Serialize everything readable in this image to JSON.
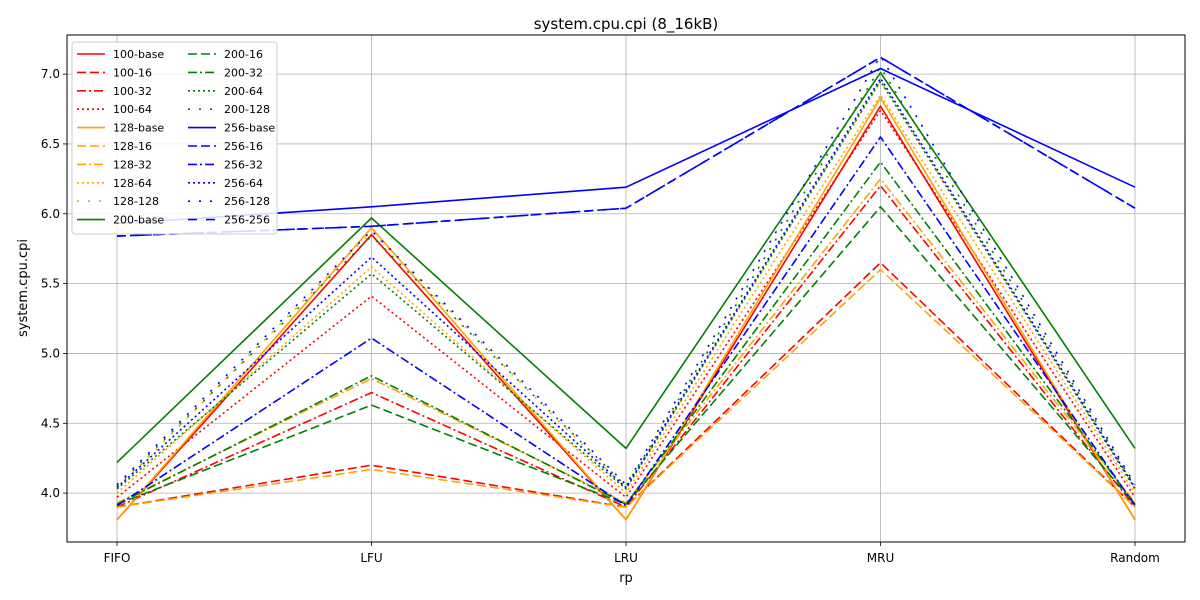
{
  "chart_data": {
    "type": "line",
    "title": "system.cpu.cpi (8_16kB)",
    "xlabel": "rp",
    "ylabel": "system.cpu.cpi",
    "categories": [
      "FIFO",
      "LFU",
      "LRU",
      "MRU",
      "Random"
    ],
    "ylim": [
      3.65,
      7.28
    ],
    "yticks": [
      4.0,
      4.5,
      5.0,
      5.5,
      6.0,
      6.5,
      7.0
    ],
    "ytick_labels": [
      "4.0",
      "4.5",
      "5.0",
      "5.5",
      "6.0",
      "6.5",
      "7.0"
    ],
    "grid": true,
    "legend_position": "upper-left",
    "legend_columns": 2,
    "colors": {
      "100": "#ff0000",
      "128": "#ffa500",
      "200": "#008000",
      "256": "#0000ff"
    },
    "series": [
      {
        "name": "100-base",
        "color": "#ff0000",
        "style": "solid",
        "values": [
          3.81,
          5.85,
          3.81,
          6.77,
          3.81
        ]
      },
      {
        "name": "100-16",
        "color": "#ff0000",
        "style": "dashed",
        "values": [
          3.9,
          4.2,
          3.9,
          5.65,
          3.9
        ]
      },
      {
        "name": "100-32",
        "color": "#ff0000",
        "style": "dashdot",
        "values": [
          3.9,
          4.72,
          3.9,
          6.2,
          3.9
        ]
      },
      {
        "name": "100-64",
        "color": "#ff0000",
        "style": "dotted",
        "values": [
          3.97,
          5.41,
          3.97,
          6.74,
          3.97
        ]
      },
      {
        "name": "128-base",
        "color": "#ffa500",
        "style": "solid",
        "values": [
          3.81,
          5.9,
          3.81,
          6.83,
          3.81
        ]
      },
      {
        "name": "128-16",
        "color": "#ffa500",
        "style": "dashed",
        "values": [
          3.9,
          4.17,
          3.9,
          5.6,
          3.9
        ]
      },
      {
        "name": "128-32",
        "color": "#ffa500",
        "style": "dashdot",
        "values": [
          3.93,
          4.82,
          3.93,
          6.25,
          3.93
        ]
      },
      {
        "name": "128-64",
        "color": "#ffa500",
        "style": "dotted",
        "values": [
          4.0,
          5.62,
          4.0,
          6.85,
          4.0
        ]
      },
      {
        "name": "128-128",
        "color": "#ffa500",
        "style": "loose-dotted",
        "values": [
          4.03,
          5.87,
          4.03,
          6.95,
          4.03
        ]
      },
      {
        "name": "200-base",
        "color": "#008000",
        "style": "solid",
        "values": [
          4.22,
          5.97,
          4.32,
          7.01,
          4.32
        ]
      },
      {
        "name": "200-16",
        "color": "#008000",
        "style": "dashed",
        "values": [
          3.92,
          4.63,
          3.92,
          6.05,
          3.92
        ]
      },
      {
        "name": "200-32",
        "color": "#008000",
        "style": "dashdot",
        "values": [
          3.92,
          4.84,
          3.92,
          6.37,
          3.92
        ]
      },
      {
        "name": "200-64",
        "color": "#008000",
        "style": "dotted",
        "values": [
          4.03,
          5.57,
          4.03,
          6.95,
          4.03
        ]
      },
      {
        "name": "200-128",
        "color": "#008000",
        "style": "loose-dotted",
        "values": [
          4.05,
          5.84,
          4.05,
          7.05,
          4.05
        ]
      },
      {
        "name": "256-base",
        "color": "#0000ff",
        "style": "solid",
        "values": [
          5.93,
          6.05,
          6.19,
          7.04,
          6.19
        ]
      },
      {
        "name": "256-16",
        "color": "#0000ff",
        "style": "dashed",
        "values": [
          5.84,
          5.91,
          6.04,
          7.12,
          6.04
        ]
      },
      {
        "name": "256-32",
        "color": "#0000ff",
        "style": "dashdot",
        "values": [
          3.91,
          5.11,
          3.91,
          6.55,
          3.91
        ]
      },
      {
        "name": "256-64",
        "color": "#0000ff",
        "style": "dotted",
        "values": [
          4.04,
          5.69,
          4.04,
          6.97,
          4.04
        ]
      },
      {
        "name": "256-128",
        "color": "#0000ff",
        "style": "loose-dotted",
        "values": [
          4.06,
          5.88,
          4.06,
          7.13,
          4.06
        ]
      },
      {
        "name": "256-256",
        "color": "#0000ff",
        "style": "loose-dashed",
        "values": [
          5.84,
          5.91,
          6.04,
          7.12,
          6.04
        ]
      }
    ]
  }
}
